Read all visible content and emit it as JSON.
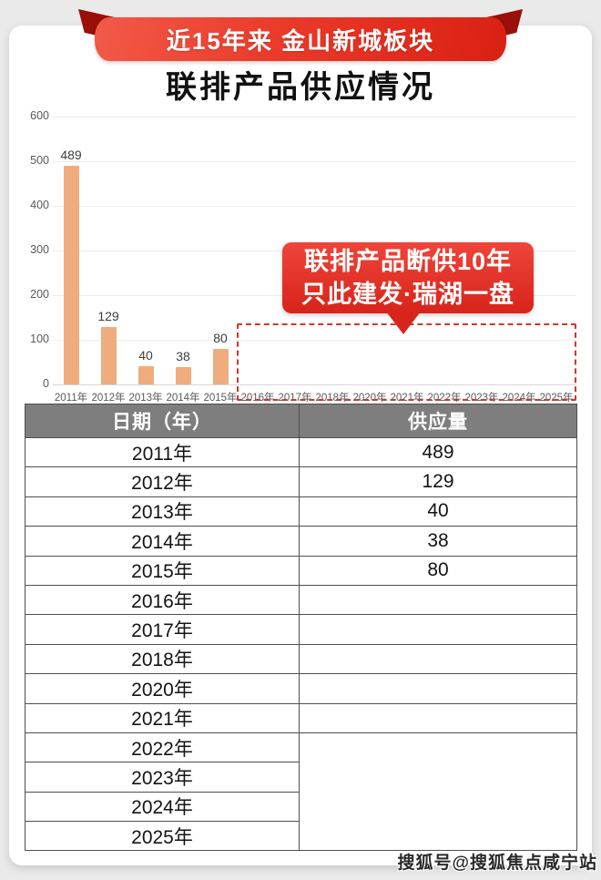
{
  "banner": {
    "ribbon_text": "近15年来 金山新城板块",
    "title": "联排产品供应情况"
  },
  "chart_data": {
    "type": "bar",
    "title": "联排产品供应情况",
    "categories": [
      "2011年",
      "2012年",
      "2013年",
      "2014年",
      "2015年",
      "2016年",
      "2017年",
      "2018年",
      "2020年",
      "2021年",
      "2022年",
      "2023年",
      "2024年",
      "2025年"
    ],
    "values": [
      489,
      129,
      40,
      38,
      80,
      null,
      null,
      null,
      null,
      null,
      null,
      null,
      null,
      null
    ],
    "ylim": [
      0,
      600
    ],
    "yticks": [
      0,
      100,
      200,
      300,
      400,
      500,
      600
    ],
    "grid": true,
    "bar_color": "#efad7d",
    "value_labels": true,
    "annotation_box_range": "2016年-2025年"
  },
  "callout": {
    "line1": "联排产品断供10年",
    "line2": "只此建发·瑞湖一盘"
  },
  "table": {
    "headers": [
      "日期（年）",
      "供应量"
    ],
    "rows": [
      {
        "year": "2011年",
        "value": "489"
      },
      {
        "year": "2012年",
        "value": "129"
      },
      {
        "year": "2013年",
        "value": "40"
      },
      {
        "year": "2014年",
        "value": "38"
      },
      {
        "year": "2015年",
        "value": "80"
      },
      {
        "year": "2016年",
        "value": ""
      },
      {
        "year": "2017年",
        "value": ""
      },
      {
        "year": "2018年",
        "value": ""
      },
      {
        "year": "2020年",
        "value": ""
      },
      {
        "year": "2021年",
        "value": ""
      },
      {
        "year": "2022年",
        "value": ""
      },
      {
        "year": "2023年",
        "value": ""
      },
      {
        "year": "2024年",
        "value": ""
      },
      {
        "year": "2025年",
        "value": ""
      }
    ],
    "merged_value_block": {
      "start_index": 10,
      "span": 4
    }
  },
  "watermark": "搜狐号@搜狐焦点咸宁站",
  "colors": {
    "ribbon_red": "#e02a1c",
    "ribbon_fold": "#9a0f07",
    "callout_red": "#d8241a",
    "dashed_border": "#cc392e",
    "bar": "#efad7d",
    "table_header_bg": "#7e7e7e",
    "page_bg": "#eaeaea"
  }
}
